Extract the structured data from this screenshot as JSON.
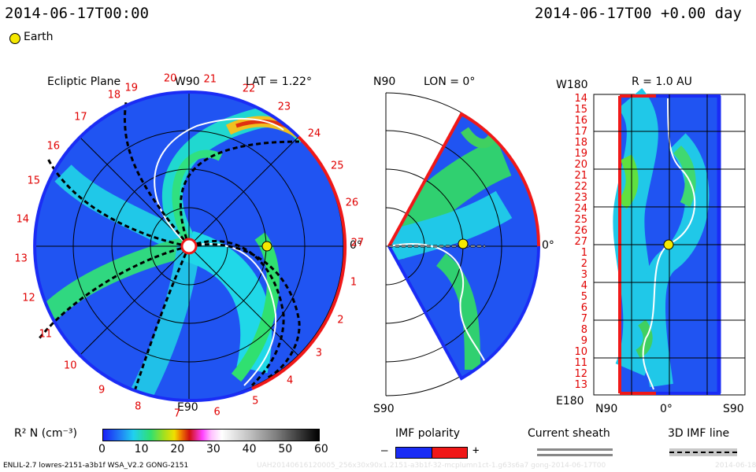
{
  "header": {
    "date_left": "2014-06-17T00:00",
    "date_right": "2014-06-17T00 +0.00 day"
  },
  "legend": {
    "earth_label": "Earth"
  },
  "panels": {
    "ecliptic": {
      "title": "Ecliptic Plane",
      "top_label": "W90",
      "lat_label": "LAT = 1.22°",
      "bottom_label": "E90",
      "right_label": "0°",
      "ticks": [
        "19",
        "20",
        "21",
        "22",
        "23",
        "24",
        "25",
        "26",
        "27",
        "1",
        "2",
        "3",
        "4",
        "5",
        "6",
        "7",
        "8",
        "9",
        "10",
        "11",
        "12",
        "13",
        "14",
        "15",
        "16",
        "17",
        "18"
      ]
    },
    "meridional": {
      "top_label": "N90",
      "lon_label": "LON = 0°",
      "bottom_label": "S90",
      "right_label": "0°"
    },
    "radial": {
      "r_label": "R = 1.0 AU",
      "top_left": "W180",
      "bottom_left": "E180",
      "x_left": "N90",
      "x_mid": "0°",
      "x_right": "S90",
      "lat_ticks": [
        "14",
        "15",
        "16",
        "17",
        "18",
        "19",
        "20",
        "21",
        "22",
        "23",
        "24",
        "25",
        "26",
        "27",
        "1",
        "2",
        "3",
        "4",
        "5",
        "6",
        "7",
        "8",
        "9",
        "10",
        "11",
        "12",
        "13"
      ]
    }
  },
  "colorbar": {
    "label": "R² N (cm⁻³)",
    "ticks": [
      "0",
      "10",
      "20",
      "30",
      "40",
      "50",
      "60"
    ]
  },
  "imf_polarity": {
    "title": "IMF polarity",
    "minus": "–",
    "plus": "+"
  },
  "current_sheath": {
    "title": "Current sheath"
  },
  "imf_line": {
    "title": "3D IMF line"
  },
  "footer": {
    "run_id": "ENLIL-2.7 lowres-2151-a3b1f WSA_V2.2 GONG-2151",
    "file_id": "UAH20140616120005_256x30x90x1.2151-a3b1f-32-mcplumn1ct-1.g63s6a7 gong-2014-06-17T00",
    "date_tag": "2014-06-18"
  },
  "colors": {
    "blue_polarity": "#1a2cf5",
    "red_polarity": "#f01818",
    "background_blue": "#2050f0",
    "earth_marker": "#f5e800"
  }
}
